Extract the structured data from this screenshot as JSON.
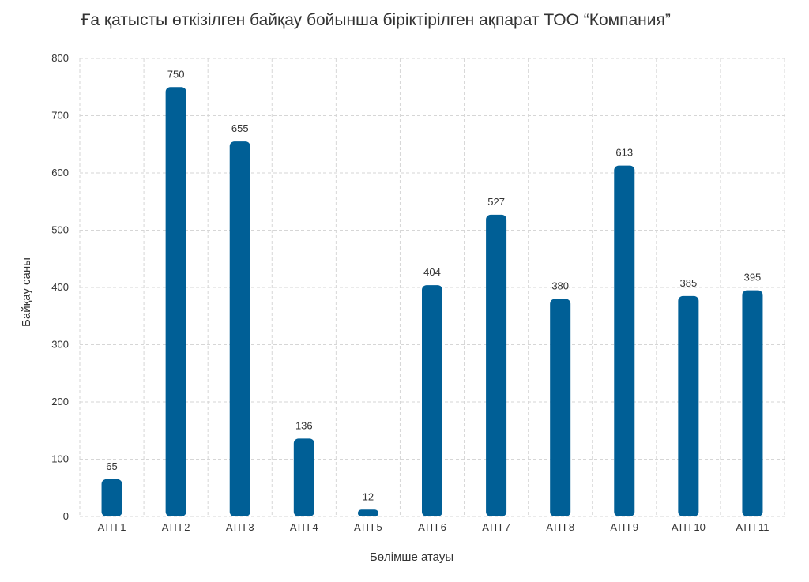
{
  "chart_data": {
    "type": "bar",
    "title": "Ғa қатысты өткізілген байқау бойынша біріктірілген ақпарат ТОО “Компания”",
    "xlabel": "Бөлімше атауы",
    "ylabel": "Байқау саны",
    "categories": [
      "АТП 1",
      "АТП 2",
      "АТП 3",
      "АТП 4",
      "АТП 5",
      "АТП 6",
      "АТП 7",
      "АТП 8",
      "АТП 9",
      "АТП 10",
      "АТП 11"
    ],
    "values": [
      65,
      750,
      655,
      136,
      12,
      404,
      527,
      380,
      613,
      385,
      395
    ],
    "ylim": [
      0,
      800
    ],
    "yticks": [
      0,
      100,
      200,
      300,
      400,
      500,
      600,
      700,
      800
    ],
    "grid": true,
    "legend": "none",
    "bar_color": "#005f96",
    "grid_color": "#d6d6d6"
  }
}
